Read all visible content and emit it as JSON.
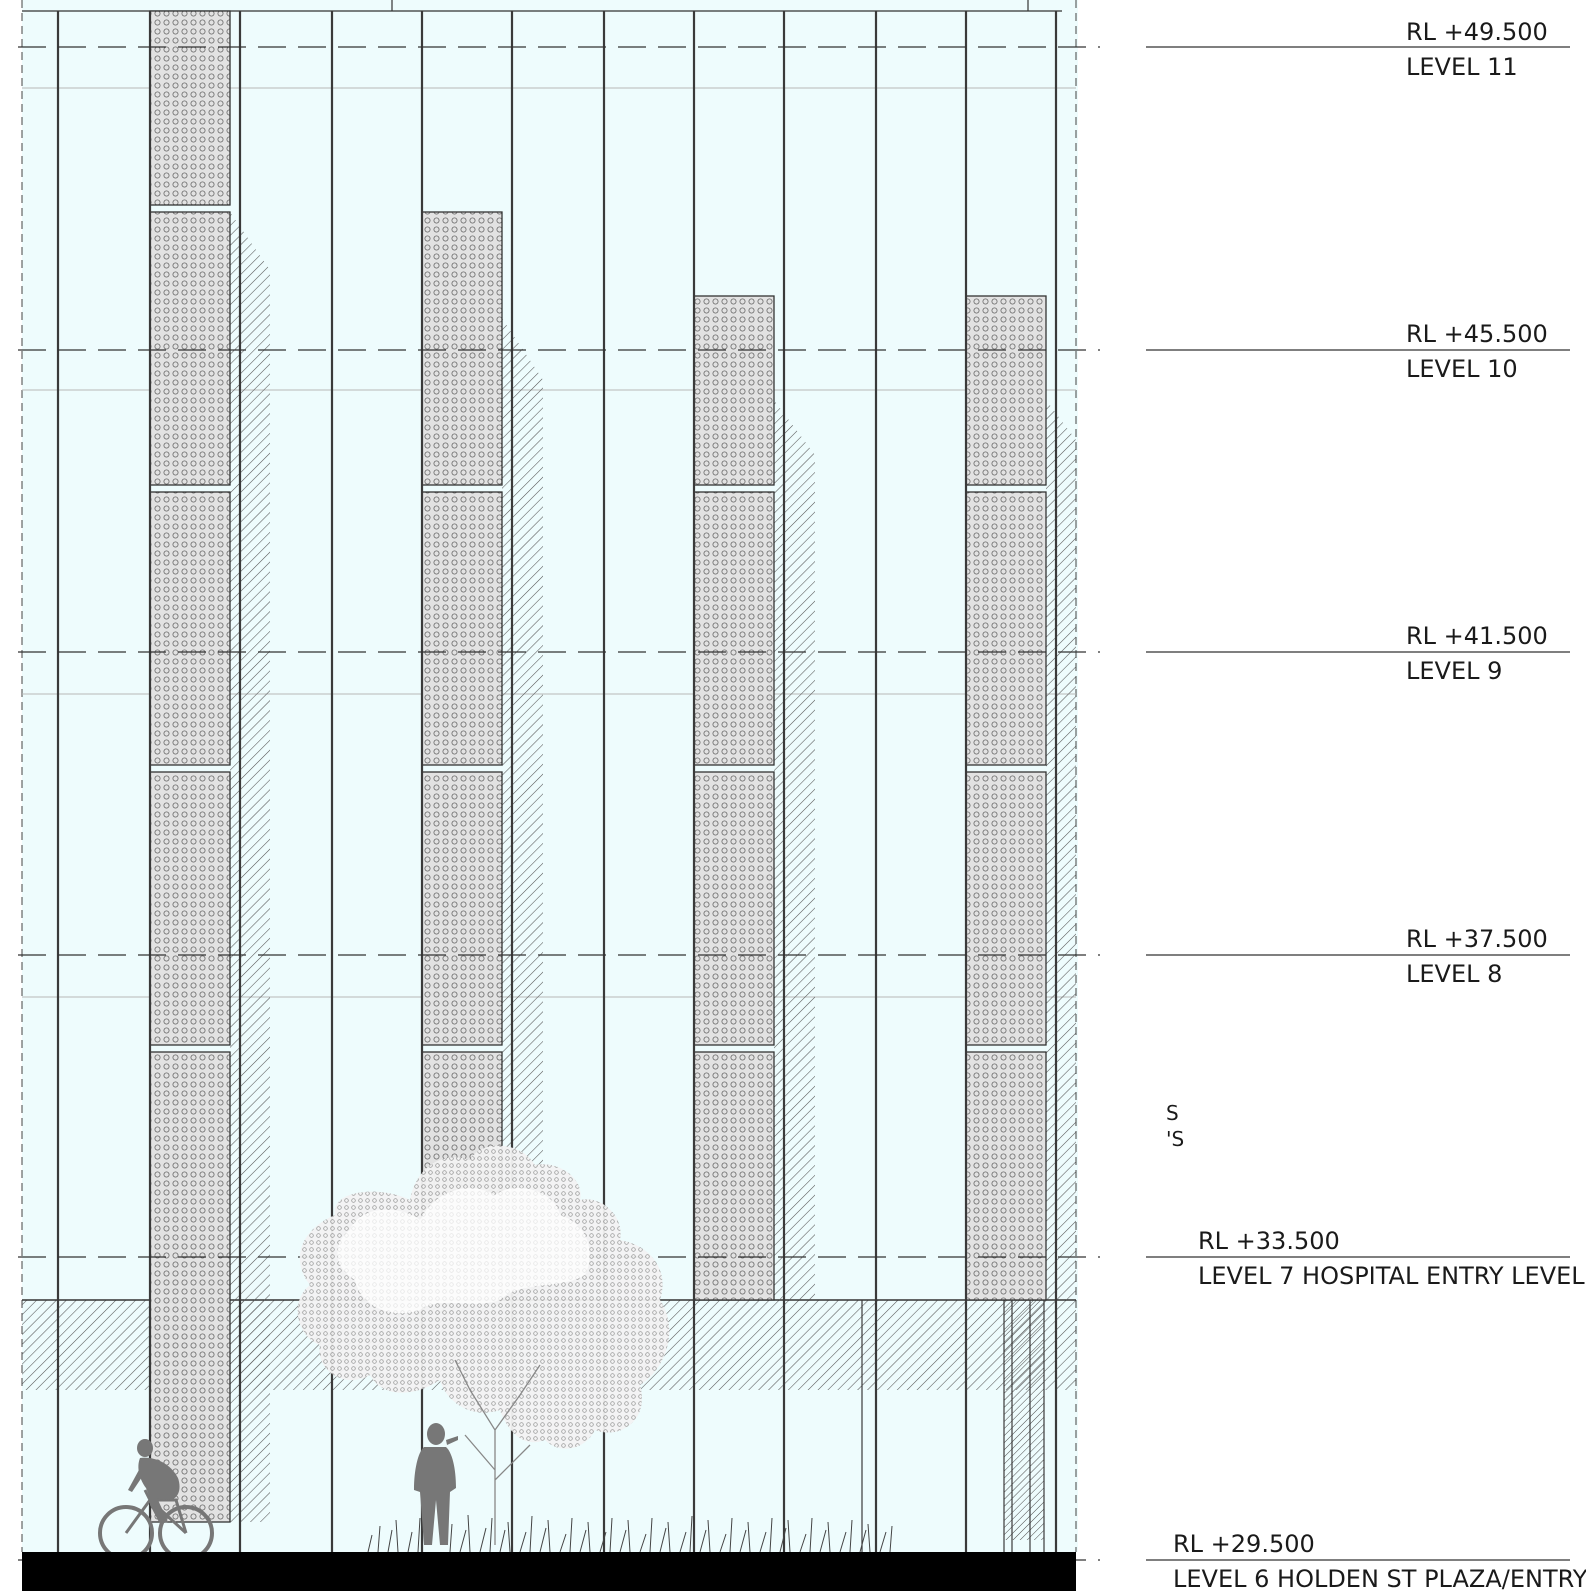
{
  "drawing": {
    "colors": {
      "glass": "#eefcfd",
      "mullion": "#333333",
      "panel_fill": "#dcdcdc",
      "ground": "#000000",
      "figure": "#777777",
      "tree_canopy": "#ffffff",
      "hatch": "#555555"
    },
    "levels": [
      {
        "id": "level-11",
        "rl": "RL +49.500",
        "name": "LEVEL 11"
      },
      {
        "id": "level-10",
        "rl": "RL +45.500",
        "name": "LEVEL 10"
      },
      {
        "id": "level-9",
        "rl": "RL +41.500",
        "name": "LEVEL 9"
      },
      {
        "id": "level-8",
        "rl": "RL +37.500",
        "name": "LEVEL 8"
      },
      {
        "id": "level-7",
        "rl": "RL +33.500",
        "name": "LEVEL 7 HOSPITAL ENTRY LEVEL"
      },
      {
        "id": "level-6",
        "rl": "RL +29.500",
        "name": "LEVEL 6 HOLDEN ST PLAZA/ENTRY"
      }
    ],
    "cropped_text": {
      "line1": "S",
      "line2": "'S"
    }
  }
}
